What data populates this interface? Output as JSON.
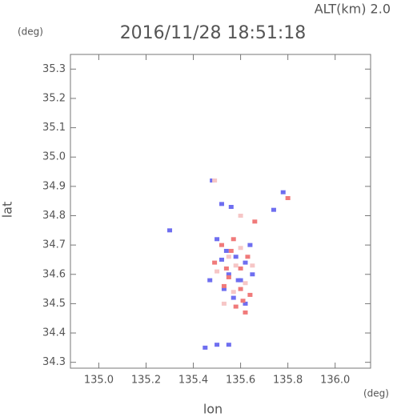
{
  "chart_data": {
    "type": "scatter",
    "subtitle": "ALT(km) 2.0",
    "title": "2016/11/28 18:51:18",
    "y_unit": "(deg)",
    "x_unit": "(deg)",
    "ylabel": "lat",
    "xlabel": "lon",
    "xlim": [
      134.88,
      136.15
    ],
    "ylim": [
      34.28,
      35.35
    ],
    "xticks": [
      {
        "value": 135,
        "label": "135.0"
      },
      135.2,
      135.4,
      135.6,
      135.8,
      {
        "value": 136,
        "label": "136.0"
      }
    ],
    "yticks": [
      35.3,
      35.2,
      35.1,
      {
        "value": 35,
        "label": "35.0"
      },
      34.9,
      34.8,
      34.7,
      34.6,
      34.5,
      34.4,
      34.3
    ],
    "series": [
      {
        "color": "#6e6ef0",
        "x": [
          135.48,
          135.52,
          135.56,
          135.3,
          135.5,
          135.52,
          135.58,
          135.62,
          135.55,
          135.6,
          135.65,
          135.47,
          135.57,
          135.62,
          135.78,
          135.74,
          135.64,
          135.53,
          135.45,
          135.5,
          135.55,
          135.59,
          135.54
        ],
        "y": [
          34.92,
          34.84,
          34.83,
          34.75,
          34.72,
          34.65,
          34.66,
          34.64,
          34.6,
          34.58,
          34.6,
          34.58,
          34.52,
          34.5,
          34.88,
          34.82,
          34.7,
          34.55,
          34.35,
          34.36,
          34.36,
          34.58,
          34.68
        ]
      },
      {
        "color": "#f07a7a",
        "x": [
          135.52,
          135.56,
          135.6,
          135.54,
          135.6,
          135.58,
          135.62,
          135.64,
          135.55,
          135.53,
          135.66,
          135.63,
          135.57,
          135.49,
          135.61,
          135.8
        ],
        "y": [
          34.7,
          34.68,
          34.62,
          34.62,
          34.55,
          34.49,
          34.47,
          34.53,
          34.59,
          34.56,
          34.78,
          34.66,
          34.72,
          34.64,
          34.51,
          34.86
        ]
      },
      {
        "color": "#f6c6c6",
        "x": [
          135.55,
          135.58,
          135.5,
          135.62,
          135.6,
          135.65,
          135.57,
          135.49,
          135.6,
          135.53
        ],
        "y": [
          34.66,
          34.63,
          34.61,
          34.57,
          34.69,
          34.63,
          34.54,
          34.92,
          34.8,
          34.5
        ]
      }
    ]
  }
}
